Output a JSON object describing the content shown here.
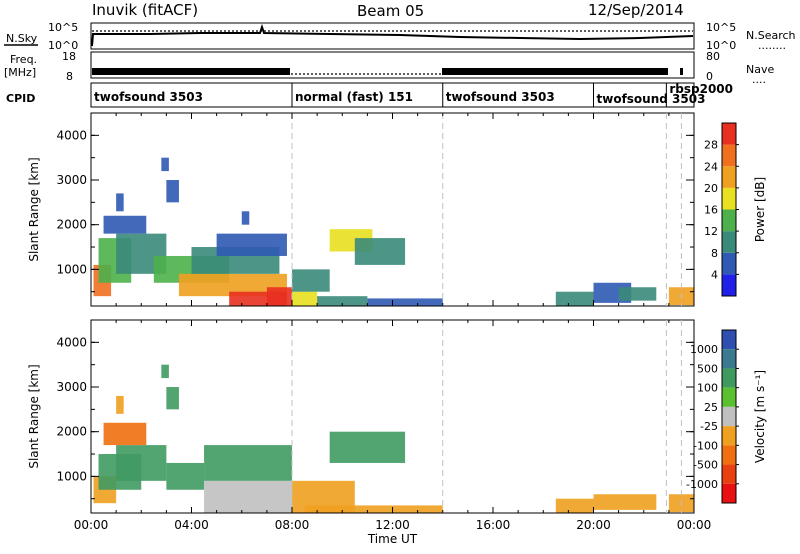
{
  "header": {
    "station": "Inuvik (fitACF)",
    "beam": "Beam 05",
    "date": "12/Sep/2014"
  },
  "noise_panel": {
    "left_label": "N.Sky",
    "right_label": "N.Search",
    "right_marker": "........",
    "left_tick_top": "10^5",
    "left_tick_bottom": "10^0",
    "right_tick_top": "10^5",
    "right_tick_bottom": "10^0"
  },
  "freq_panel": {
    "left_label_1": "Freq.",
    "left_label_2": "[MHz]",
    "right_label": "Nave",
    "right_marker": "....",
    "left_tick_top": "18",
    "left_tick_bottom": "8",
    "right_tick_top": "80",
    "right_tick_bottom": "0"
  },
  "cpid_panel": {
    "label": "CPID",
    "segments": [
      {
        "label": "twofsound 3503",
        "start_h": 0,
        "end_h": 8
      },
      {
        "label": "normal (fast) 151",
        "start_h": 8,
        "end_h": 14
      },
      {
        "label": "twofsound 3503",
        "start_h": 14,
        "end_h": 20
      },
      {
        "label": "twofsound 3503",
        "start_h": 20,
        "end_h": 22.9
      },
      {
        "label": "rbsp2000",
        "start_h": 22.9,
        "end_h": 23.5
      }
    ]
  },
  "chart_data": [
    {
      "type": "heatmap",
      "panel": "power",
      "ylabel": "Slant Range [km]",
      "yticks": [
        "1000",
        "2000",
        "3000",
        "4000"
      ],
      "ylim": [
        180,
        4500
      ],
      "xlim": [
        0,
        24
      ],
      "colorbar_label": "Power [dB]",
      "colorbar_ticks": [
        "4",
        "8",
        "12",
        "16",
        "20",
        "24",
        "28"
      ],
      "colorbar_colors": [
        "#2020e8",
        "#2f5ab3",
        "#3a8a7a",
        "#4db04a",
        "#e8e020",
        "#f0a020",
        "#f07020",
        "#e83020"
      ],
      "blocks": [
        {
          "x0": 0.1,
          "x1": 0.8,
          "y0": 400,
          "y1": 1100,
          "level": 6
        },
        {
          "x0": 0.3,
          "x1": 1.6,
          "y0": 700,
          "y1": 1700,
          "level": 3
        },
        {
          "x0": 1.0,
          "x1": 3.0,
          "y0": 900,
          "y1": 1800,
          "level": 2
        },
        {
          "x0": 0.5,
          "x1": 2.2,
          "y0": 1800,
          "y1": 2200,
          "level": 1
        },
        {
          "x0": 2.5,
          "x1": 5.5,
          "y0": 700,
          "y1": 1300,
          "level": 3
        },
        {
          "x0": 3.5,
          "x1": 7.8,
          "y0": 400,
          "y1": 900,
          "level": 5
        },
        {
          "x0": 4.0,
          "x1": 7.5,
          "y0": 900,
          "y1": 1500,
          "level": 2
        },
        {
          "x0": 5.0,
          "x1": 7.8,
          "y0": 1300,
          "y1": 1800,
          "level": 1
        },
        {
          "x0": 5.5,
          "x1": 7.8,
          "y0": 180,
          "y1": 500,
          "level": 7
        },
        {
          "x0": 7.0,
          "x1": 8.0,
          "y0": 180,
          "y1": 600,
          "level": 7
        },
        {
          "x0": 8.0,
          "x1": 9.0,
          "y0": 180,
          "y1": 500,
          "level": 4
        },
        {
          "x0": 8.0,
          "x1": 9.5,
          "y0": 500,
          "y1": 1000,
          "level": 2
        },
        {
          "x0": 9.0,
          "x1": 11.0,
          "y0": 180,
          "y1": 400,
          "level": 2
        },
        {
          "x0": 9.5,
          "x1": 11.2,
          "y0": 1400,
          "y1": 1900,
          "level": 4
        },
        {
          "x0": 10.5,
          "x1": 12.5,
          "y0": 1100,
          "y1": 1700,
          "level": 2
        },
        {
          "x0": 11.0,
          "x1": 14.0,
          "y0": 180,
          "y1": 350,
          "level": 1
        },
        {
          "x0": 3.0,
          "x1": 3.5,
          "y0": 2500,
          "y1": 3000,
          "level": 1
        },
        {
          "x0": 1.0,
          "x1": 1.3,
          "y0": 2300,
          "y1": 2700,
          "level": 1
        },
        {
          "x0": 2.8,
          "x1": 3.1,
          "y0": 3200,
          "y1": 3500,
          "level": 1
        },
        {
          "x0": 6.0,
          "x1": 6.3,
          "y0": 2000,
          "y1": 2300,
          "level": 1
        },
        {
          "x0": 18.5,
          "x1": 20.0,
          "y0": 180,
          "y1": 500,
          "level": 2
        },
        {
          "x0": 20.0,
          "x1": 21.5,
          "y0": 250,
          "y1": 700,
          "level": 1
        },
        {
          "x0": 21.0,
          "x1": 22.5,
          "y0": 300,
          "y1": 600,
          "level": 2
        },
        {
          "x0": 23.0,
          "x1": 24.0,
          "y0": 200,
          "y1": 600,
          "level": 5
        }
      ]
    },
    {
      "type": "heatmap",
      "panel": "velocity",
      "ylabel": "Slant Range [km]",
      "yticks": [
        "1000",
        "2000",
        "3000",
        "4000"
      ],
      "ylim": [
        180,
        4500
      ],
      "xlim": [
        0,
        24
      ],
      "xticks": [
        "00:00",
        "04:00",
        "08:00",
        "12:00",
        "16:00",
        "20:00",
        "00:00"
      ],
      "xlabel": "Time UT",
      "colorbar_label": "Velocity [m s⁻¹]",
      "colorbar_ticks": [
        "1000",
        "500",
        "100",
        "25",
        "-25",
        "-100",
        "-500",
        "-1000"
      ],
      "colorbar_colors": [
        "#2f4fb0",
        "#3a7a90",
        "#3f9a60",
        "#5ac030",
        "#c0c0c0",
        "#f0a020",
        "#f07010",
        "#e84010",
        "#e81010"
      ],
      "blocks": [
        {
          "x0": 0.1,
          "x1": 1.0,
          "y0": 400,
          "y1": 1000,
          "level": 5
        },
        {
          "x0": 0.3,
          "x1": 2.0,
          "y0": 700,
          "y1": 1500,
          "level": 2
        },
        {
          "x0": 1.0,
          "x1": 3.0,
          "y0": 900,
          "y1": 1700,
          "level": 2
        },
        {
          "x0": 0.5,
          "x1": 2.2,
          "y0": 1700,
          "y1": 2200,
          "level": 6
        },
        {
          "x0": 3.0,
          "x1": 4.5,
          "y0": 700,
          "y1": 1300,
          "level": 2
        },
        {
          "x0": 4.5,
          "x1": 8.0,
          "y0": 180,
          "y1": 900,
          "level": 4
        },
        {
          "x0": 4.5,
          "x1": 8.0,
          "y0": 900,
          "y1": 1700,
          "level": 2
        },
        {
          "x0": 8.0,
          "x1": 10.5,
          "y0": 180,
          "y1": 900,
          "level": 5
        },
        {
          "x0": 9.5,
          "x1": 12.5,
          "y0": 1300,
          "y1": 2000,
          "level": 2
        },
        {
          "x0": 8.5,
          "x1": 14.0,
          "y0": 180,
          "y1": 350,
          "level": 5
        },
        {
          "x0": 3.0,
          "x1": 3.5,
          "y0": 2500,
          "y1": 3000,
          "level": 2
        },
        {
          "x0": 2.8,
          "x1": 3.1,
          "y0": 3200,
          "y1": 3500,
          "level": 2
        },
        {
          "x0": 1.0,
          "x1": 1.3,
          "y0": 2400,
          "y1": 2800,
          "level": 5
        },
        {
          "x0": 18.5,
          "x1": 20.0,
          "y0": 180,
          "y1": 500,
          "level": 5
        },
        {
          "x0": 20.0,
          "x1": 22.5,
          "y0": 250,
          "y1": 600,
          "level": 5
        },
        {
          "x0": 23.0,
          "x1": 24.0,
          "y0": 200,
          "y1": 600,
          "level": 5
        }
      ]
    }
  ]
}
